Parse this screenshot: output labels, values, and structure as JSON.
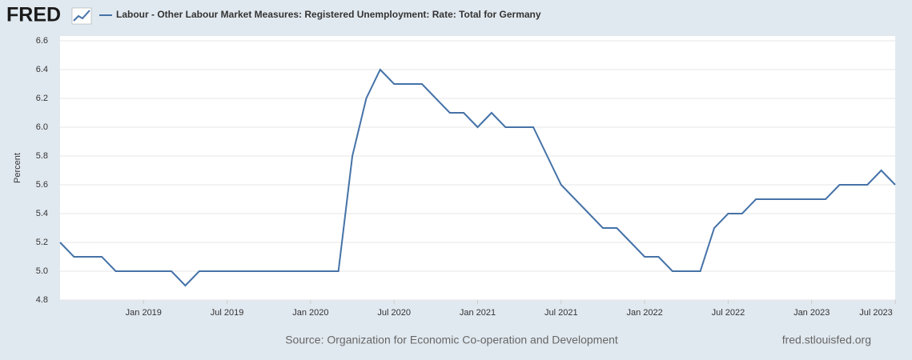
{
  "logo": "FRED",
  "chart_data": {
    "type": "line",
    "series": [
      {
        "name": "Labour - Other Labour Market Measures: Registered Unemployment: Rate: Total for Germany",
        "color": "#4572a7",
        "values": [
          5.2,
          5.1,
          5.1,
          5.1,
          5.0,
          5.0,
          5.0,
          5.0,
          5.0,
          4.9,
          5.0,
          5.0,
          5.0,
          5.0,
          5.0,
          5.0,
          5.0,
          5.0,
          5.0,
          5.0,
          5.0,
          5.8,
          6.2,
          6.4,
          6.3,
          6.3,
          6.3,
          6.2,
          6.1,
          6.1,
          6.0,
          6.1,
          6.0,
          6.0,
          6.0,
          5.8,
          5.6,
          5.5,
          5.4,
          5.3,
          5.3,
          5.2,
          5.1,
          5.1,
          5.0,
          5.0,
          5.0,
          5.3,
          5.4,
          5.4,
          5.5,
          5.5,
          5.5,
          5.5,
          5.5,
          5.5,
          5.6,
          5.6,
          5.6,
          5.7,
          5.6
        ]
      }
    ],
    "x": [
      "2018-07",
      "2018-08",
      "2018-09",
      "2018-10",
      "2018-11",
      "2018-12",
      "2019-01",
      "2019-02",
      "2019-03",
      "2019-04",
      "2019-05",
      "2019-06",
      "2019-07",
      "2019-08",
      "2019-09",
      "2019-10",
      "2019-11",
      "2019-12",
      "2020-01",
      "2020-02",
      "2020-03",
      "2020-04",
      "2020-05",
      "2020-06",
      "2020-07",
      "2020-08",
      "2020-09",
      "2020-10",
      "2020-11",
      "2020-12",
      "2021-01",
      "2021-02",
      "2021-03",
      "2021-04",
      "2021-05",
      "2021-06",
      "2021-07",
      "2021-08",
      "2021-09",
      "2021-10",
      "2021-11",
      "2021-12",
      "2022-01",
      "2022-02",
      "2022-03",
      "2022-04",
      "2022-05",
      "2022-06",
      "2022-07",
      "2022-08",
      "2022-09",
      "2022-10",
      "2022-11",
      "2022-12",
      "2023-01",
      "2023-02",
      "2023-03",
      "2023-04",
      "2023-05",
      "2023-06",
      "2023-07"
    ],
    "xlim": [
      "2018-07",
      "2023-07"
    ],
    "xticks": [
      {
        "value": "2019-01",
        "label": "Jan 2019"
      },
      {
        "value": "2019-07",
        "label": "Jul 2019"
      },
      {
        "value": "2020-01",
        "label": "Jan 2020"
      },
      {
        "value": "2020-07",
        "label": "Jul 2020"
      },
      {
        "value": "2021-01",
        "label": "Jan 2021"
      },
      {
        "value": "2021-07",
        "label": "Jul 2021"
      },
      {
        "value": "2022-01",
        "label": "Jan 2022"
      },
      {
        "value": "2022-07",
        "label": "Jul 2022"
      },
      {
        "value": "2023-01",
        "label": "Jan 2023"
      },
      {
        "value": "2023-07",
        "label": "Jul 2023"
      }
    ],
    "ylim": [
      4.8,
      6.6
    ],
    "yticks": [
      {
        "value": 4.8,
        "label": "4.8"
      },
      {
        "value": 5.0,
        "label": "5.0"
      },
      {
        "value": 5.2,
        "label": "5.2"
      },
      {
        "value": 5.4,
        "label": "5.4"
      },
      {
        "value": 5.6,
        "label": "5.6"
      },
      {
        "value": 5.8,
        "label": "5.8"
      },
      {
        "value": 6.0,
        "label": "6.0"
      },
      {
        "value": 6.2,
        "label": "6.2"
      },
      {
        "value": 6.4,
        "label": "6.4"
      },
      {
        "value": 6.6,
        "label": "6.6"
      }
    ],
    "ylabel": "Percent",
    "grid": true,
    "source": "Source: Organization for Economic Co-operation and Development",
    "credit": "fred.stlouisfed.org"
  }
}
